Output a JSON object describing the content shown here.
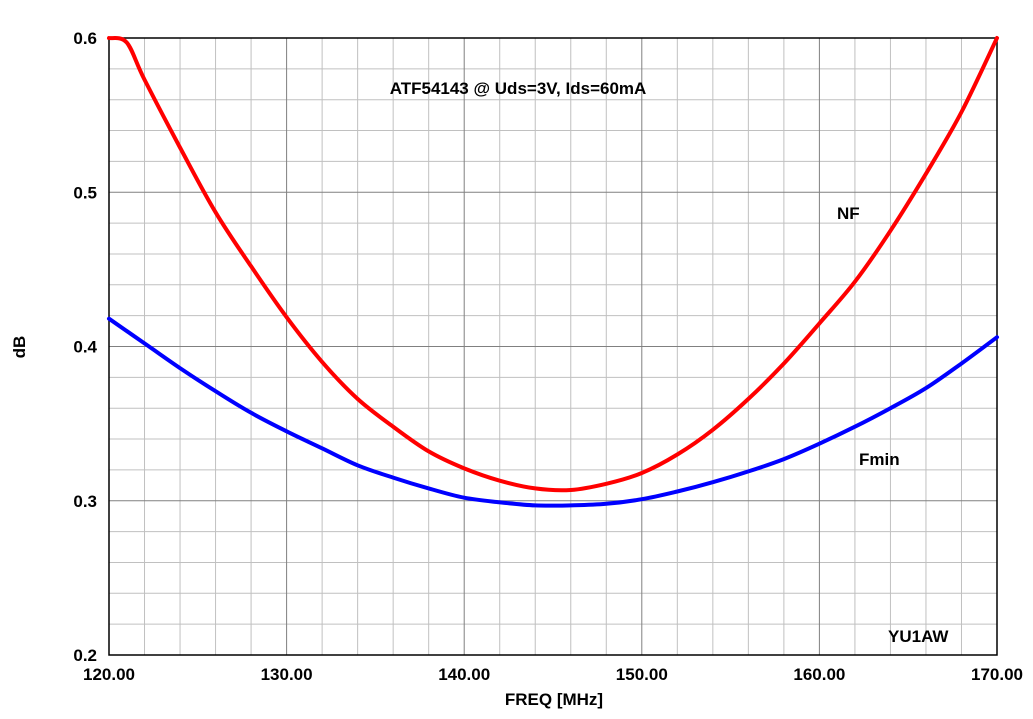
{
  "chart_data": {
    "type": "line",
    "title": "ATF54143 @ Uds=3V, Ids=60mA",
    "xlabel": "FREQ [MHz]",
    "ylabel": "dB",
    "xlim": [
      120,
      170
    ],
    "ylim": [
      0.2,
      0.6
    ],
    "x_ticks": [
      "120.00",
      "130.00",
      "140.00",
      "150.00",
      "160.00",
      "170.00"
    ],
    "y_ticks": [
      "0.2",
      "0.3",
      "0.4",
      "0.5",
      "0.6"
    ],
    "grid": true,
    "series": [
      {
        "name": "NF",
        "color": "#ff0000",
        "x": [
          120,
          121,
          122,
          124,
          126,
          128,
          130,
          132,
          134,
          136,
          138,
          140,
          142,
          144,
          146,
          148,
          150,
          152,
          154,
          156,
          158,
          160,
          162,
          164,
          166,
          168,
          170
        ],
        "y": [
          0.6,
          0.597,
          0.573,
          0.529,
          0.487,
          0.452,
          0.419,
          0.39,
          0.366,
          0.348,
          0.332,
          0.321,
          0.313,
          0.308,
          0.307,
          0.311,
          0.318,
          0.33,
          0.346,
          0.366,
          0.389,
          0.415,
          0.442,
          0.475,
          0.512,
          0.552,
          0.6
        ]
      },
      {
        "name": "Fmin",
        "color": "#0000ff",
        "x": [
          120,
          122,
          124,
          126,
          128,
          130,
          132,
          134,
          136,
          138,
          140,
          142,
          144,
          146,
          148,
          150,
          152,
          154,
          156,
          158,
          160,
          162,
          164,
          166,
          168,
          170
        ],
        "y": [
          0.418,
          0.402,
          0.386,
          0.371,
          0.357,
          0.345,
          0.334,
          0.323,
          0.315,
          0.308,
          0.302,
          0.299,
          0.297,
          0.297,
          0.298,
          0.301,
          0.306,
          0.312,
          0.319,
          0.327,
          0.337,
          0.348,
          0.36,
          0.373,
          0.389,
          0.406
        ]
      }
    ],
    "annotations": [
      "NF",
      "Fmin",
      "YU1AW"
    ]
  }
}
